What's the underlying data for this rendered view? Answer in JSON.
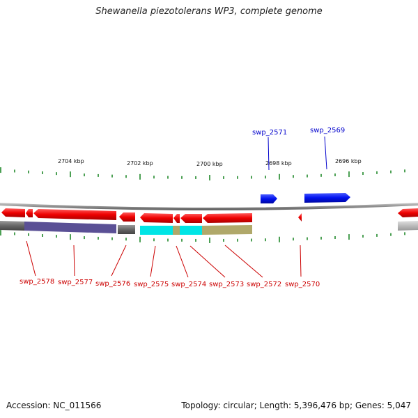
{
  "title": "Shewanella piezotolerans WP3, complete genome",
  "footer": {
    "accession": "Accession: NC_011566",
    "info": "Topology: circular; Length: 5,396,476 bp; Genes: 5,047"
  },
  "ruler_labels": [
    "2704 kbp",
    "2702 kbp",
    "2700 kbp",
    "2698 kbp",
    "2696 kbp"
  ],
  "genes_reverse": [
    "swp_2578",
    "swp_2577",
    "swp_2576",
    "swp_2575",
    "swp_2574",
    "swp_2573",
    "swp_2572",
    "swp_2570"
  ],
  "genes_forward": [
    "swp_2571",
    "swp_2569"
  ],
  "colors": {
    "reverse_gene": "#ee0000",
    "forward_gene": "#0011ee",
    "backbone": "#888888",
    "domain_purple": "#5a5095",
    "domain_cyan": "#00e5e5",
    "domain_khaki": "#b0a86a",
    "tick": "#11801a"
  }
}
